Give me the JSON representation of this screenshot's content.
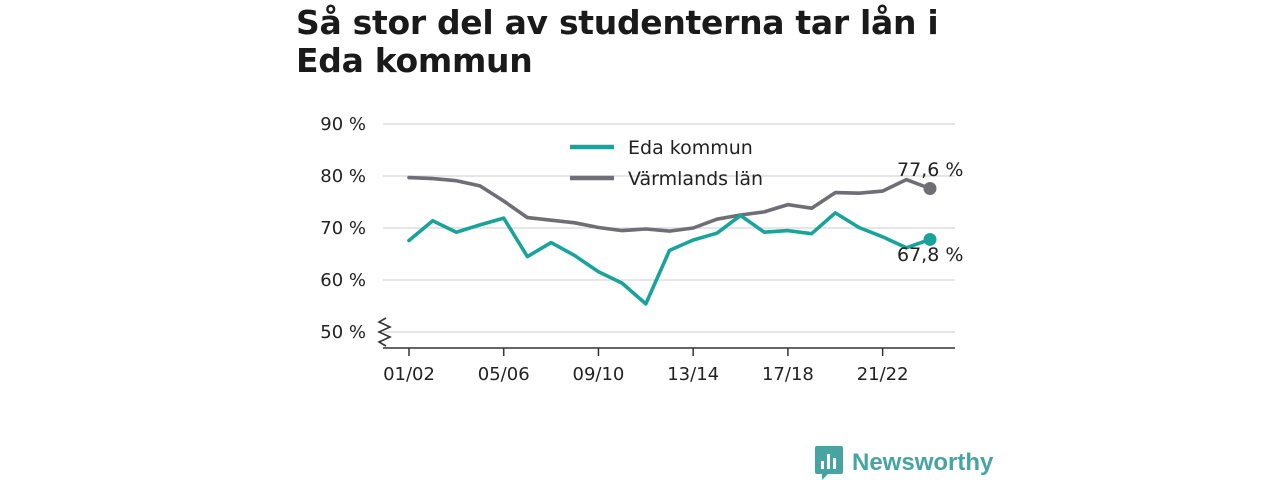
{
  "title": "Så stor del av studenterna tar lån i Eda kommun",
  "brand": {
    "name": "Newsworthy",
    "color": "#47a4a0",
    "icon": "bar-chart-speech-icon"
  },
  "chart_data": {
    "type": "line",
    "title": "Så stor del av studenterna tar lån i Eda kommun",
    "xlabel": "",
    "ylabel": "",
    "x": [
      "01/02",
      "02/03",
      "03/04",
      "04/05",
      "05/06",
      "06/07",
      "07/08",
      "08/09",
      "09/10",
      "10/11",
      "11/12",
      "12/13",
      "13/14",
      "14/15",
      "15/16",
      "16/17",
      "17/18",
      "18/19",
      "19/20",
      "20/21",
      "21/22",
      "22/23",
      "23/24"
    ],
    "x_tick_labels": [
      "01/02",
      "05/06",
      "09/10",
      "13/14",
      "17/18",
      "21/22"
    ],
    "y_tick_labels": [
      "90 %",
      "80 %",
      "70 %",
      "60 %",
      "50 %"
    ],
    "y_ticks": [
      90,
      80,
      70,
      60,
      50
    ],
    "ylim": [
      50,
      90
    ],
    "y_axis_break": true,
    "grid": true,
    "legend_position": "top-center",
    "series": [
      {
        "name": "Eda kommun",
        "color": "#1aa39a",
        "values": [
          67.6,
          71.4,
          69.2,
          70.6,
          71.9,
          64.5,
          67.2,
          64.7,
          61.6,
          59.4,
          55.4,
          65.7,
          67.7,
          69.0,
          72.4,
          69.2,
          69.5,
          68.9,
          72.9,
          70.1,
          68.3,
          66.2,
          67.8
        ],
        "end_label": "67,8 %"
      },
      {
        "name": "Värmlands län",
        "color": "#6e6e74",
        "values": [
          79.7,
          79.5,
          79.1,
          78.1,
          75.2,
          72.0,
          71.5,
          71.0,
          70.1,
          69.5,
          69.8,
          69.4,
          70.0,
          71.7,
          72.5,
          73.1,
          74.5,
          73.8,
          76.8,
          76.7,
          77.1,
          79.3,
          77.6
        ],
        "end_label": "77,6 %"
      }
    ]
  }
}
